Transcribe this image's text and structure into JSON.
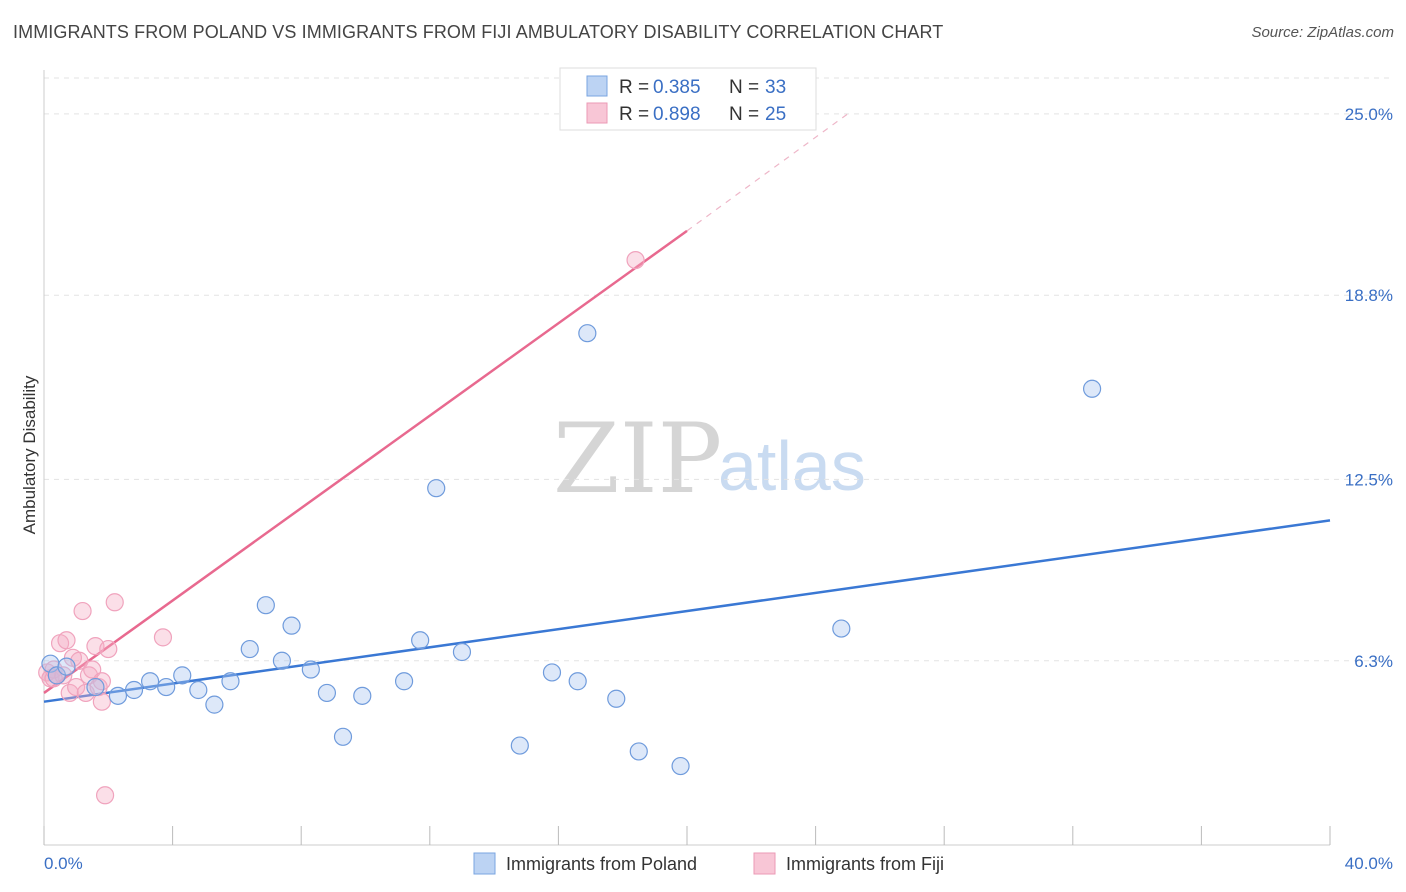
{
  "title": "IMMIGRANTS FROM POLAND VS IMMIGRANTS FROM FIJI AMBULATORY DISABILITY CORRELATION CHART",
  "source": "Source: ZipAtlas.com",
  "colors": {
    "poland": "#3a78d4",
    "fiji": "#e8698f",
    "tick_label": "#3a6fc4"
  },
  "legend": {
    "rows": [
      {
        "r_label": "R =",
        "r_value": "0.385",
        "n_label": "N =",
        "n_value": "33"
      },
      {
        "r_label": "R =",
        "r_value": "0.898",
        "n_label": "N =",
        "n_value": "25"
      }
    ]
  },
  "bottom_legend": {
    "poland": "Immigrants from Poland",
    "fiji": "Immigrants from Fiji"
  },
  "watermark": {
    "zip": "ZIP",
    "atlas": "atlas"
  },
  "chart_data": {
    "type": "scatter",
    "title": "IMMIGRANTS FROM POLAND VS IMMIGRANTS FROM FIJI AMBULATORY DISABILITY CORRELATION CHART",
    "xlabel": "",
    "ylabel": "Ambulatory Disability",
    "xlim": [
      0,
      40
    ],
    "ylim": [
      0,
      26.5
    ],
    "x_tick_labels": [
      "0.0%",
      "40.0%"
    ],
    "y_ticks": [
      6.3,
      12.5,
      18.8,
      25.0
    ],
    "y_tick_labels": [
      "6.3%",
      "12.5%",
      "18.8%",
      "25.0%"
    ],
    "grid": true,
    "series": [
      {
        "name": "Immigrants from Poland",
        "points": [
          [
            0.2,
            6.2
          ],
          [
            0.4,
            5.8
          ],
          [
            0.7,
            6.1
          ],
          [
            1.6,
            5.4
          ],
          [
            2.3,
            5.1
          ],
          [
            2.8,
            5.3
          ],
          [
            3.3,
            5.6
          ],
          [
            3.8,
            5.4
          ],
          [
            4.3,
            5.8
          ],
          [
            4.8,
            5.3
          ],
          [
            5.3,
            4.8
          ],
          [
            5.8,
            5.6
          ],
          [
            6.4,
            6.7
          ],
          [
            6.9,
            8.2
          ],
          [
            7.4,
            6.3
          ],
          [
            7.7,
            7.5
          ],
          [
            8.3,
            6.0
          ],
          [
            8.8,
            5.2
          ],
          [
            9.3,
            3.7
          ],
          [
            9.9,
            5.1
          ],
          [
            11.2,
            5.6
          ],
          [
            11.7,
            7.0
          ],
          [
            12.2,
            12.2
          ],
          [
            13.0,
            6.6
          ],
          [
            14.8,
            3.4
          ],
          [
            15.8,
            5.9
          ],
          [
            16.9,
            17.5
          ],
          [
            16.6,
            5.6
          ],
          [
            17.8,
            5.0
          ],
          [
            18.5,
            3.2
          ],
          [
            19.8,
            2.7
          ],
          [
            24.8,
            7.4
          ],
          [
            32.6,
            15.6
          ]
        ],
        "trend": {
          "x": [
            0,
            40
          ],
          "y": [
            4.9,
            11.1
          ]
        }
      },
      {
        "name": "Immigrants from Fiji",
        "points": [
          [
            0.1,
            5.9
          ],
          [
            0.2,
            5.7
          ],
          [
            0.3,
            6.0
          ],
          [
            0.4,
            5.8
          ],
          [
            0.5,
            6.9
          ],
          [
            0.6,
            5.8
          ],
          [
            0.7,
            7.0
          ],
          [
            0.8,
            5.2
          ],
          [
            0.9,
            6.4
          ],
          [
            1.0,
            5.4
          ],
          [
            1.1,
            6.3
          ],
          [
            1.2,
            8.0
          ],
          [
            1.3,
            5.2
          ],
          [
            1.4,
            5.8
          ],
          [
            1.5,
            6.0
          ],
          [
            1.6,
            6.8
          ],
          [
            1.7,
            5.4
          ],
          [
            1.8,
            5.6
          ],
          [
            1.8,
            4.9
          ],
          [
            1.9,
            1.7
          ],
          [
            2.0,
            6.7
          ],
          [
            2.2,
            8.3
          ],
          [
            3.7,
            7.1
          ],
          [
            18.4,
            20.0
          ],
          [
            0.3,
            5.7
          ]
        ],
        "trend": {
          "x": [
            0,
            20
          ],
          "y": [
            5.2,
            21.0
          ]
        },
        "trend_extension": {
          "x": [
            20,
            25
          ],
          "y": [
            21.0,
            25.0
          ]
        }
      }
    ]
  }
}
